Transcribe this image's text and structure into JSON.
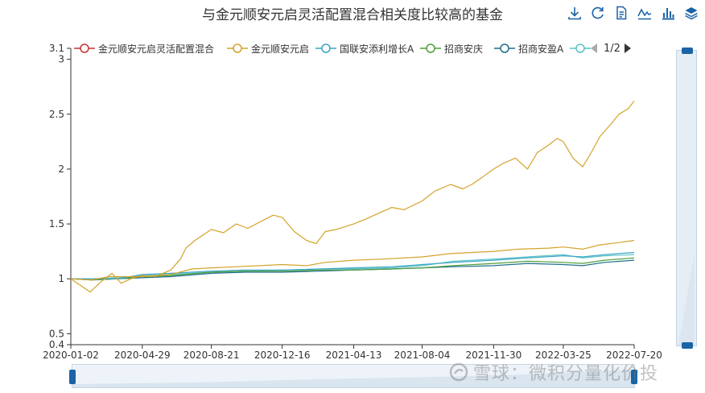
{
  "title": "与金元顺安元启灵活配置混合相关度比较高的基金",
  "toolbox": {
    "icons": [
      "download-icon",
      "refresh-icon",
      "data-view-icon",
      "line-chart-icon",
      "bar-chart-icon",
      "stack-icon"
    ],
    "color": "#1a63a6"
  },
  "legend": {
    "items": [
      {
        "label": "金元顺安元启灵活配置混合",
        "color": "#c23531"
      },
      {
        "label": "金元顺安元启",
        "color": "#d4a32b"
      },
      {
        "label": "国联安添利增长A",
        "color": "#3aa6c4"
      },
      {
        "label": "招商安庆",
        "color": "#4f9e3a"
      },
      {
        "label": "招商安盈A",
        "color": "#1f6e8c"
      },
      {
        "label": "",
        "color": "#5bc0c9"
      }
    ],
    "page": "1/2"
  },
  "watermark": "雪球：微积分量化价投",
  "chart_data": {
    "type": "line",
    "title": "与金元顺安元启灵活配置混合相关度比较高的基金",
    "x_tick_labels": [
      "2020-01-02",
      "2020-04-29",
      "2020-08-21",
      "2020-12-16",
      "2021-04-13",
      "2021-08-04",
      "2021-11-30",
      "2022-03-25",
      "2022-07-20"
    ],
    "x_range": [
      "2020-01-02",
      "2022-07-20"
    ],
    "y_ticks": [
      0.4,
      0.5,
      1,
      1.5,
      2,
      2.5,
      3,
      3.1
    ],
    "y_tick_labels": [
      "0.4",
      "0.5",
      "1",
      "1.5",
      "2",
      "2.5",
      "3",
      "3.1"
    ],
    "ylim": [
      0.4,
      3.1
    ],
    "grid": false,
    "legend_position": "top",
    "series": [
      {
        "name": "金元顺安元启",
        "color": "#d4a32b",
        "points": [
          [
            "2020-01-02",
            1.0
          ],
          [
            "2020-02-03",
            0.88
          ],
          [
            "2020-02-20",
            0.97
          ],
          [
            "2020-03-10",
            1.05
          ],
          [
            "2020-03-25",
            0.96
          ],
          [
            "2020-04-10",
            1.0
          ],
          [
            "2020-04-29",
            1.03
          ],
          [
            "2020-05-20",
            1.02
          ],
          [
            "2020-06-15",
            1.08
          ],
          [
            "2020-07-01",
            1.18
          ],
          [
            "2020-07-10",
            1.28
          ],
          [
            "2020-07-25",
            1.35
          ],
          [
            "2020-08-21",
            1.45
          ],
          [
            "2020-09-10",
            1.42
          ],
          [
            "2020-10-01",
            1.5
          ],
          [
            "2020-10-20",
            1.46
          ],
          [
            "2020-11-10",
            1.52
          ],
          [
            "2020-12-01",
            1.58
          ],
          [
            "2020-12-16",
            1.56
          ],
          [
            "2021-01-05",
            1.43
          ],
          [
            "2021-01-25",
            1.35
          ],
          [
            "2021-02-10",
            1.32
          ],
          [
            "2021-02-25",
            1.43
          ],
          [
            "2021-03-15",
            1.45
          ],
          [
            "2021-04-13",
            1.5
          ],
          [
            "2021-05-05",
            1.55
          ],
          [
            "2021-05-25",
            1.6
          ],
          [
            "2021-06-15",
            1.65
          ],
          [
            "2021-07-05",
            1.63
          ],
          [
            "2021-08-04",
            1.71
          ],
          [
            "2021-08-25",
            1.8
          ],
          [
            "2021-09-20",
            1.86
          ],
          [
            "2021-10-10",
            1.82
          ],
          [
            "2021-10-25",
            1.86
          ],
          [
            "2021-11-10",
            1.92
          ],
          [
            "2021-11-30",
            2.0
          ],
          [
            "2021-12-15",
            2.05
          ],
          [
            "2022-01-05",
            2.1
          ],
          [
            "2022-01-25",
            2.0
          ],
          [
            "2022-02-10",
            2.15
          ],
          [
            "2022-03-01",
            2.22
          ],
          [
            "2022-03-15",
            2.28
          ],
          [
            "2022-03-25",
            2.25
          ],
          [
            "2022-04-10",
            2.1
          ],
          [
            "2022-04-26",
            2.02
          ],
          [
            "2022-05-10",
            2.15
          ],
          [
            "2022-05-25",
            2.3
          ],
          [
            "2022-06-10",
            2.4
          ],
          [
            "2022-06-25",
            2.5
          ],
          [
            "2022-07-10",
            2.55
          ],
          [
            "2022-07-20",
            2.62
          ]
        ]
      },
      {
        "name": "",
        "color": "#d4a32b",
        "points": [
          [
            "2020-01-02",
            1.0
          ],
          [
            "2020-02-05",
            0.99
          ],
          [
            "2020-03-05",
            1.02
          ],
          [
            "2020-04-29",
            1.02
          ],
          [
            "2020-06-15",
            1.04
          ],
          [
            "2020-07-20",
            1.09
          ],
          [
            "2020-08-21",
            1.1
          ],
          [
            "2020-10-01",
            1.11
          ],
          [
            "2020-12-16",
            1.13
          ],
          [
            "2021-01-25",
            1.12
          ],
          [
            "2021-02-25",
            1.15
          ],
          [
            "2021-04-13",
            1.17
          ],
          [
            "2021-06-01",
            1.18
          ],
          [
            "2021-08-04",
            1.2
          ],
          [
            "2021-09-20",
            1.23
          ],
          [
            "2021-11-30",
            1.25
          ],
          [
            "2022-01-10",
            1.27
          ],
          [
            "2022-03-01",
            1.28
          ],
          [
            "2022-03-25",
            1.29
          ],
          [
            "2022-04-26",
            1.27
          ],
          [
            "2022-05-25",
            1.31
          ],
          [
            "2022-06-25",
            1.33
          ],
          [
            "2022-07-20",
            1.35
          ]
        ]
      },
      {
        "name": "国联安添利增长A",
        "color": "#3aa6c4",
        "points": [
          [
            "2020-01-02",
            1.0
          ],
          [
            "2020-02-05",
            1.0
          ],
          [
            "2020-03-20",
            1.0
          ],
          [
            "2020-04-29",
            1.04
          ],
          [
            "2020-06-15",
            1.05
          ],
          [
            "2020-08-21",
            1.07
          ],
          [
            "2020-10-15",
            1.08
          ],
          [
            "2020-12-16",
            1.08
          ],
          [
            "2021-02-15",
            1.09
          ],
          [
            "2021-04-13",
            1.1
          ],
          [
            "2021-06-15",
            1.11
          ],
          [
            "2021-08-04",
            1.13
          ],
          [
            "2021-09-25",
            1.15
          ],
          [
            "2021-11-30",
            1.17
          ],
          [
            "2022-01-25",
            1.19
          ],
          [
            "2022-03-25",
            1.21
          ],
          [
            "2022-04-26",
            1.2
          ],
          [
            "2022-06-01",
            1.22
          ],
          [
            "2022-07-20",
            1.24
          ]
        ]
      },
      {
        "name": "招商安庆",
        "color": "#4f9e3a",
        "points": [
          [
            "2020-01-02",
            1.0
          ],
          [
            "2020-02-05",
            0.99
          ],
          [
            "2020-03-20",
            1.0
          ],
          [
            "2020-04-29",
            1.02
          ],
          [
            "2020-06-15",
            1.03
          ],
          [
            "2020-08-21",
            1.06
          ],
          [
            "2020-10-15",
            1.07
          ],
          [
            "2020-12-16",
            1.07
          ],
          [
            "2021-02-15",
            1.08
          ],
          [
            "2021-04-13",
            1.08
          ],
          [
            "2021-06-15",
            1.09
          ],
          [
            "2021-08-04",
            1.1
          ],
          [
            "2021-09-25",
            1.12
          ],
          [
            "2021-11-30",
            1.14
          ],
          [
            "2022-01-25",
            1.16
          ],
          [
            "2022-03-25",
            1.15
          ],
          [
            "2022-04-26",
            1.14
          ],
          [
            "2022-06-01",
            1.17
          ],
          [
            "2022-07-20",
            1.19
          ]
        ]
      },
      {
        "name": "招商安盈A",
        "color": "#1f6e8c",
        "points": [
          [
            "2020-01-02",
            1.0
          ],
          [
            "2020-02-05",
            0.99
          ],
          [
            "2020-03-20",
            1.0
          ],
          [
            "2020-04-29",
            1.01
          ],
          [
            "2020-06-15",
            1.02
          ],
          [
            "2020-08-21",
            1.05
          ],
          [
            "2020-10-15",
            1.06
          ],
          [
            "2020-12-16",
            1.06
          ],
          [
            "2021-02-15",
            1.07
          ],
          [
            "2021-04-13",
            1.08
          ],
          [
            "2021-06-15",
            1.09
          ],
          [
            "2021-08-04",
            1.1
          ],
          [
            "2021-09-25",
            1.11
          ],
          [
            "2021-11-30",
            1.12
          ],
          [
            "2022-01-25",
            1.14
          ],
          [
            "2022-03-25",
            1.13
          ],
          [
            "2022-04-26",
            1.12
          ],
          [
            "2022-06-01",
            1.15
          ],
          [
            "2022-07-20",
            1.17
          ]
        ]
      },
      {
        "name": "",
        "color": "#5bc0c9",
        "points": [
          [
            "2020-01-02",
            1.0
          ],
          [
            "2020-02-05",
            1.0
          ],
          [
            "2020-03-20",
            1.01
          ],
          [
            "2020-04-29",
            1.03
          ],
          [
            "2020-06-15",
            1.04
          ],
          [
            "2020-08-21",
            1.06
          ],
          [
            "2020-10-15",
            1.07
          ],
          [
            "2020-12-16",
            1.08
          ],
          [
            "2021-02-15",
            1.09
          ],
          [
            "2021-04-13",
            1.09
          ],
          [
            "2021-06-15",
            1.1
          ],
          [
            "2021-08-04",
            1.12
          ],
          [
            "2021-09-25",
            1.16
          ],
          [
            "2021-11-30",
            1.18
          ],
          [
            "2022-01-25",
            1.2
          ],
          [
            "2022-03-25",
            1.22
          ],
          [
            "2022-04-26",
            1.19
          ],
          [
            "2022-06-01",
            1.21
          ],
          [
            "2022-07-20",
            1.22
          ]
        ]
      }
    ]
  }
}
